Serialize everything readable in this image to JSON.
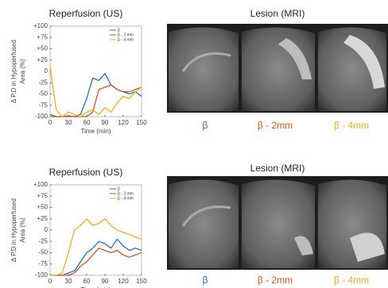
{
  "chart_data": [
    {
      "type": "line",
      "title": "Reperfusion (US)",
      "xlabel": "Time (min)",
      "ylabel": [
        "Δ P.D in Hypoperfused",
        "Area (%)"
      ],
      "x": [
        0,
        10,
        20,
        30,
        40,
        50,
        60,
        70,
        80,
        90,
        100,
        110,
        120,
        130,
        140,
        150
      ],
      "series": [
        {
          "name": "β",
          "color": "#2e6db4",
          "values": [
            -95,
            -100,
            -100,
            -98,
            -100,
            -95,
            -60,
            -15,
            -20,
            -5,
            -30,
            -40,
            -45,
            -50,
            -45,
            -55
          ]
        },
        {
          "name": "β - 2 mm",
          "color": "#d9531e",
          "values": [
            -100,
            -100,
            -100,
            -100,
            -100,
            -100,
            -100,
            -90,
            -40,
            -35,
            -30,
            -40,
            -45,
            -45,
            -40,
            -35
          ]
        },
        {
          "name": "β - 4 mm",
          "color": "#edb120",
          "values": [
            10,
            -85,
            -100,
            -90,
            -95,
            -100,
            -90,
            -85,
            -95,
            -80,
            -90,
            -70,
            -55,
            -60,
            -45,
            -35
          ]
        }
      ],
      "xlim": [
        0,
        150
      ],
      "xticks": [
        0,
        30,
        60,
        90,
        120,
        150
      ],
      "ylim": [
        -100,
        100
      ],
      "yticks": [
        -100,
        -75,
        -50,
        -25,
        0,
        {
          "value": 25,
          "label": "+25"
        },
        {
          "value": 50,
          "label": "+50"
        },
        {
          "value": 75,
          "label": "+75"
        },
        {
          "value": 100,
          "label": "+100"
        }
      ],
      "legend": "upper right"
    },
    {
      "type": "line",
      "title": "Reperfusion (US)",
      "xlabel": "Time (min)",
      "ylabel": [
        "Δ P.D in Hypoperfused",
        "Area (%)"
      ],
      "x": [
        0,
        10,
        20,
        30,
        40,
        50,
        60,
        70,
        80,
        90,
        100,
        110,
        120,
        130,
        140,
        150
      ],
      "series": [
        {
          "name": "β",
          "color": "#2e6db4",
          "values": [
            -100,
            -100,
            -100,
            -95,
            -90,
            -70,
            -50,
            -40,
            -25,
            -30,
            -40,
            -20,
            -35,
            -45,
            -40,
            -45
          ]
        },
        {
          "name": "β - 2 mm",
          "color": "#d9531e",
          "values": [
            -100,
            -100,
            -100,
            -100,
            -95,
            -80,
            -70,
            -55,
            -40,
            -45,
            -50,
            -45,
            -55,
            -60,
            -55,
            -50
          ]
        },
        {
          "name": "β - 4 mm",
          "color": "#edb120",
          "values": [
            -100,
            -100,
            -95,
            -50,
            0,
            10,
            25,
            10,
            15,
            25,
            10,
            0,
            -5,
            -10,
            -15,
            -20
          ]
        }
      ],
      "xlim": [
        0,
        150
      ],
      "xticks": [
        0,
        30,
        60,
        90,
        120,
        150
      ],
      "ylim": [
        -100,
        100
      ],
      "yticks": [
        -100,
        -75,
        -50,
        -25,
        0,
        {
          "value": 25,
          "label": "+25"
        },
        {
          "value": 50,
          "label": "+50"
        },
        {
          "value": 75,
          "label": "+75"
        },
        {
          "value": 100,
          "label": "+100"
        }
      ],
      "legend": "upper right"
    }
  ],
  "mri_panels": [
    {
      "title": "Lesion (MRI)",
      "labels": [
        "β",
        "β - 2mm",
        "β - 4mm"
      ],
      "label_colors": [
        "#2e6db4",
        "#d9531e",
        "#edb120"
      ]
    },
    {
      "title": "Lesion (MRI)",
      "labels": [
        "β",
        "β - 2mm",
        "β - 4mm"
      ],
      "label_colors": [
        "#2e6db4",
        "#d9531e",
        "#edb120"
      ]
    }
  ]
}
